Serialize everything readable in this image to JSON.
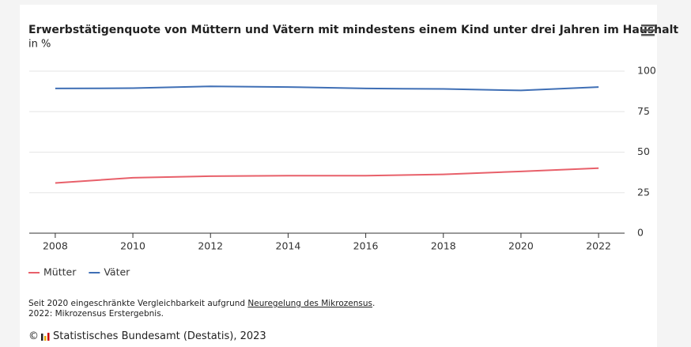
{
  "chart_data": {
    "type": "line",
    "title": "Erwerbstätigenquote von Müttern und Vätern mit mindestens einem Kind unter drei Jahren im Haushalt",
    "subtitle": "in %",
    "x": [
      2008,
      2010,
      2012,
      2014,
      2016,
      2018,
      2020,
      2022
    ],
    "series": [
      {
        "name": "Mütter",
        "color": "#e8606a",
        "values": [
          31,
          34.2,
          35.2,
          35.5,
          35.5,
          36.3,
          38.1,
          40.1
        ]
      },
      {
        "name": "Väter",
        "color": "#3f6fb5",
        "values": [
          89.3,
          89.5,
          90.6,
          90.2,
          89.3,
          89.0,
          88.1,
          90.2
        ]
      }
    ],
    "xlim": [
      2007.33,
      2022.67
    ],
    "xticks": [
      2008,
      2010,
      2012,
      2014,
      2016,
      2018,
      2020,
      2022
    ],
    "ylim": [
      0,
      100
    ],
    "yticks": [
      0,
      25,
      50,
      75,
      100
    ],
    "grid": true,
    "legend": "bottom-left",
    "notes": [
      "Seit 2020 eingeschränkte Vergleichbarkeit aufgrund",
      "Neuregelung des Mikrozensus",
      ".",
      "2022: Mikrozensus Erstergebnis."
    ],
    "copyright": "©",
    "credit": "Statistisches Bundesamt (Destatis), 2023"
  }
}
